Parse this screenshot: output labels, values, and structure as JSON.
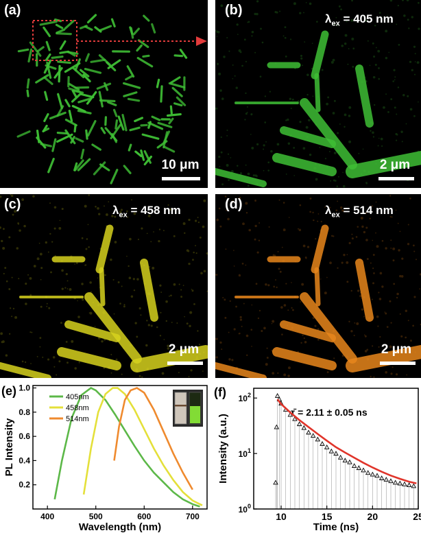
{
  "panels": {
    "a": {
      "label": "(a)",
      "scale": "10 μm",
      "color": "#3fbf35"
    },
    "b": {
      "label": "(b)",
      "lambda_prefix": "λ",
      "lambda_sub": "ex",
      "lambda_value": " = 405 nm",
      "scale": "2 μm",
      "color": "#3fbf35"
    },
    "c": {
      "label": "(c)",
      "lambda_prefix": "λ",
      "lambda_sub": "ex",
      "lambda_value": " = 458 nm",
      "scale": "2 μm",
      "color": "#d6d21e"
    },
    "d": {
      "label": "(d)",
      "lambda_prefix": "λ",
      "lambda_sub": "ex",
      "lambda_value": " = 514 nm",
      "scale": "2 μm",
      "color": "#e8861c"
    }
  },
  "chart_data": [
    {
      "panel": "(e)",
      "type": "line",
      "xlabel": "Wavelength (nm)",
      "ylabel": "PL Intensity",
      "xlim": [
        370,
        730
      ],
      "ylim": [
        0,
        1.02
      ],
      "xticks": [
        400,
        500,
        600,
        700
      ],
      "yticks": [
        0.2,
        0.4,
        0.6,
        0.8,
        1.0
      ],
      "ytick_labels": [
        "0.2",
        "0.4",
        "0.6",
        "0.8",
        "1.0"
      ],
      "legend_position": "top-center",
      "series": [
        {
          "name": "405nm",
          "color": "#5cb848",
          "x": [
            415,
            430,
            450,
            470,
            490,
            500,
            520,
            540,
            560,
            580,
            600,
            620,
            640,
            660,
            680,
            700,
            715
          ],
          "y": [
            0.08,
            0.4,
            0.75,
            0.94,
            1.0,
            0.98,
            0.9,
            0.78,
            0.65,
            0.52,
            0.4,
            0.3,
            0.22,
            0.14,
            0.08,
            0.04,
            0.02
          ]
        },
        {
          "name": "458nm",
          "color": "#e4e03a",
          "x": [
            475,
            490,
            505,
            520,
            535,
            545,
            560,
            580,
            600,
            620,
            640,
            660,
            680,
            700,
            720
          ],
          "y": [
            0.12,
            0.5,
            0.8,
            0.95,
            1.0,
            1.0,
            0.95,
            0.82,
            0.66,
            0.5,
            0.36,
            0.24,
            0.14,
            0.07,
            0.03
          ]
        },
        {
          "name": "514nm",
          "color": "#ef8a2e",
          "x": [
            538,
            548,
            560,
            572,
            585,
            600,
            620,
            640,
            660,
            680,
            700
          ],
          "y": [
            0.4,
            0.68,
            0.9,
            0.98,
            1.0,
            0.96,
            0.82,
            0.64,
            0.46,
            0.3,
            0.16
          ]
        }
      ]
    },
    {
      "panel": "(f)",
      "type": "scatter",
      "xlabel": "Time (ns)",
      "ylabel": "Intensity (a.u.)",
      "yscale": "log",
      "xlim": [
        7,
        25
      ],
      "ylim": [
        1,
        150
      ],
      "xticks": [
        10,
        15,
        20,
        25
      ],
      "yticks": [
        1,
        10,
        100
      ],
      "annotation": "τ̄ = 2.11 ± 0.05 ns",
      "series": [
        {
          "name": "",
          "color": "#000000",
          "marker": "triangle-open",
          "x": [
            9.4,
            9.5,
            9.6,
            9.8,
            10.0,
            10.5,
            11.0,
            11.5,
            12.0,
            12.5,
            13.0,
            13.5,
            14.0,
            14.5,
            15.0,
            15.5,
            16.0,
            16.5,
            17.0,
            17.5,
            18.0,
            18.5,
            19.0,
            19.5,
            20.0,
            20.5,
            21.0,
            21.5,
            22.0,
            22.5,
            23.0,
            23.5,
            24.0,
            24.5
          ],
          "y": [
            3,
            30,
            110,
            95,
            80,
            62,
            50,
            42,
            34,
            29,
            24,
            21,
            18,
            15,
            13,
            11,
            10,
            8.5,
            7.5,
            7,
            6,
            5.5,
            5,
            4.5,
            4.2,
            4,
            3.6,
            3.4,
            3.2,
            3,
            2.9,
            2.8,
            2.7,
            2.6
          ]
        },
        {
          "name": "",
          "color": "#e0342a",
          "type": "line",
          "x": [
            9.6,
            10,
            11,
            12,
            13,
            14,
            15,
            16,
            17,
            18,
            19,
            20,
            21,
            22,
            23,
            24,
            24.8
          ],
          "y": [
            95,
            78,
            55,
            40,
            30,
            22.5,
            17,
            13,
            10.4,
            8.4,
            6.8,
            5.6,
            4.7,
            4.0,
            3.5,
            3.1,
            2.9
          ]
        }
      ]
    }
  ]
}
